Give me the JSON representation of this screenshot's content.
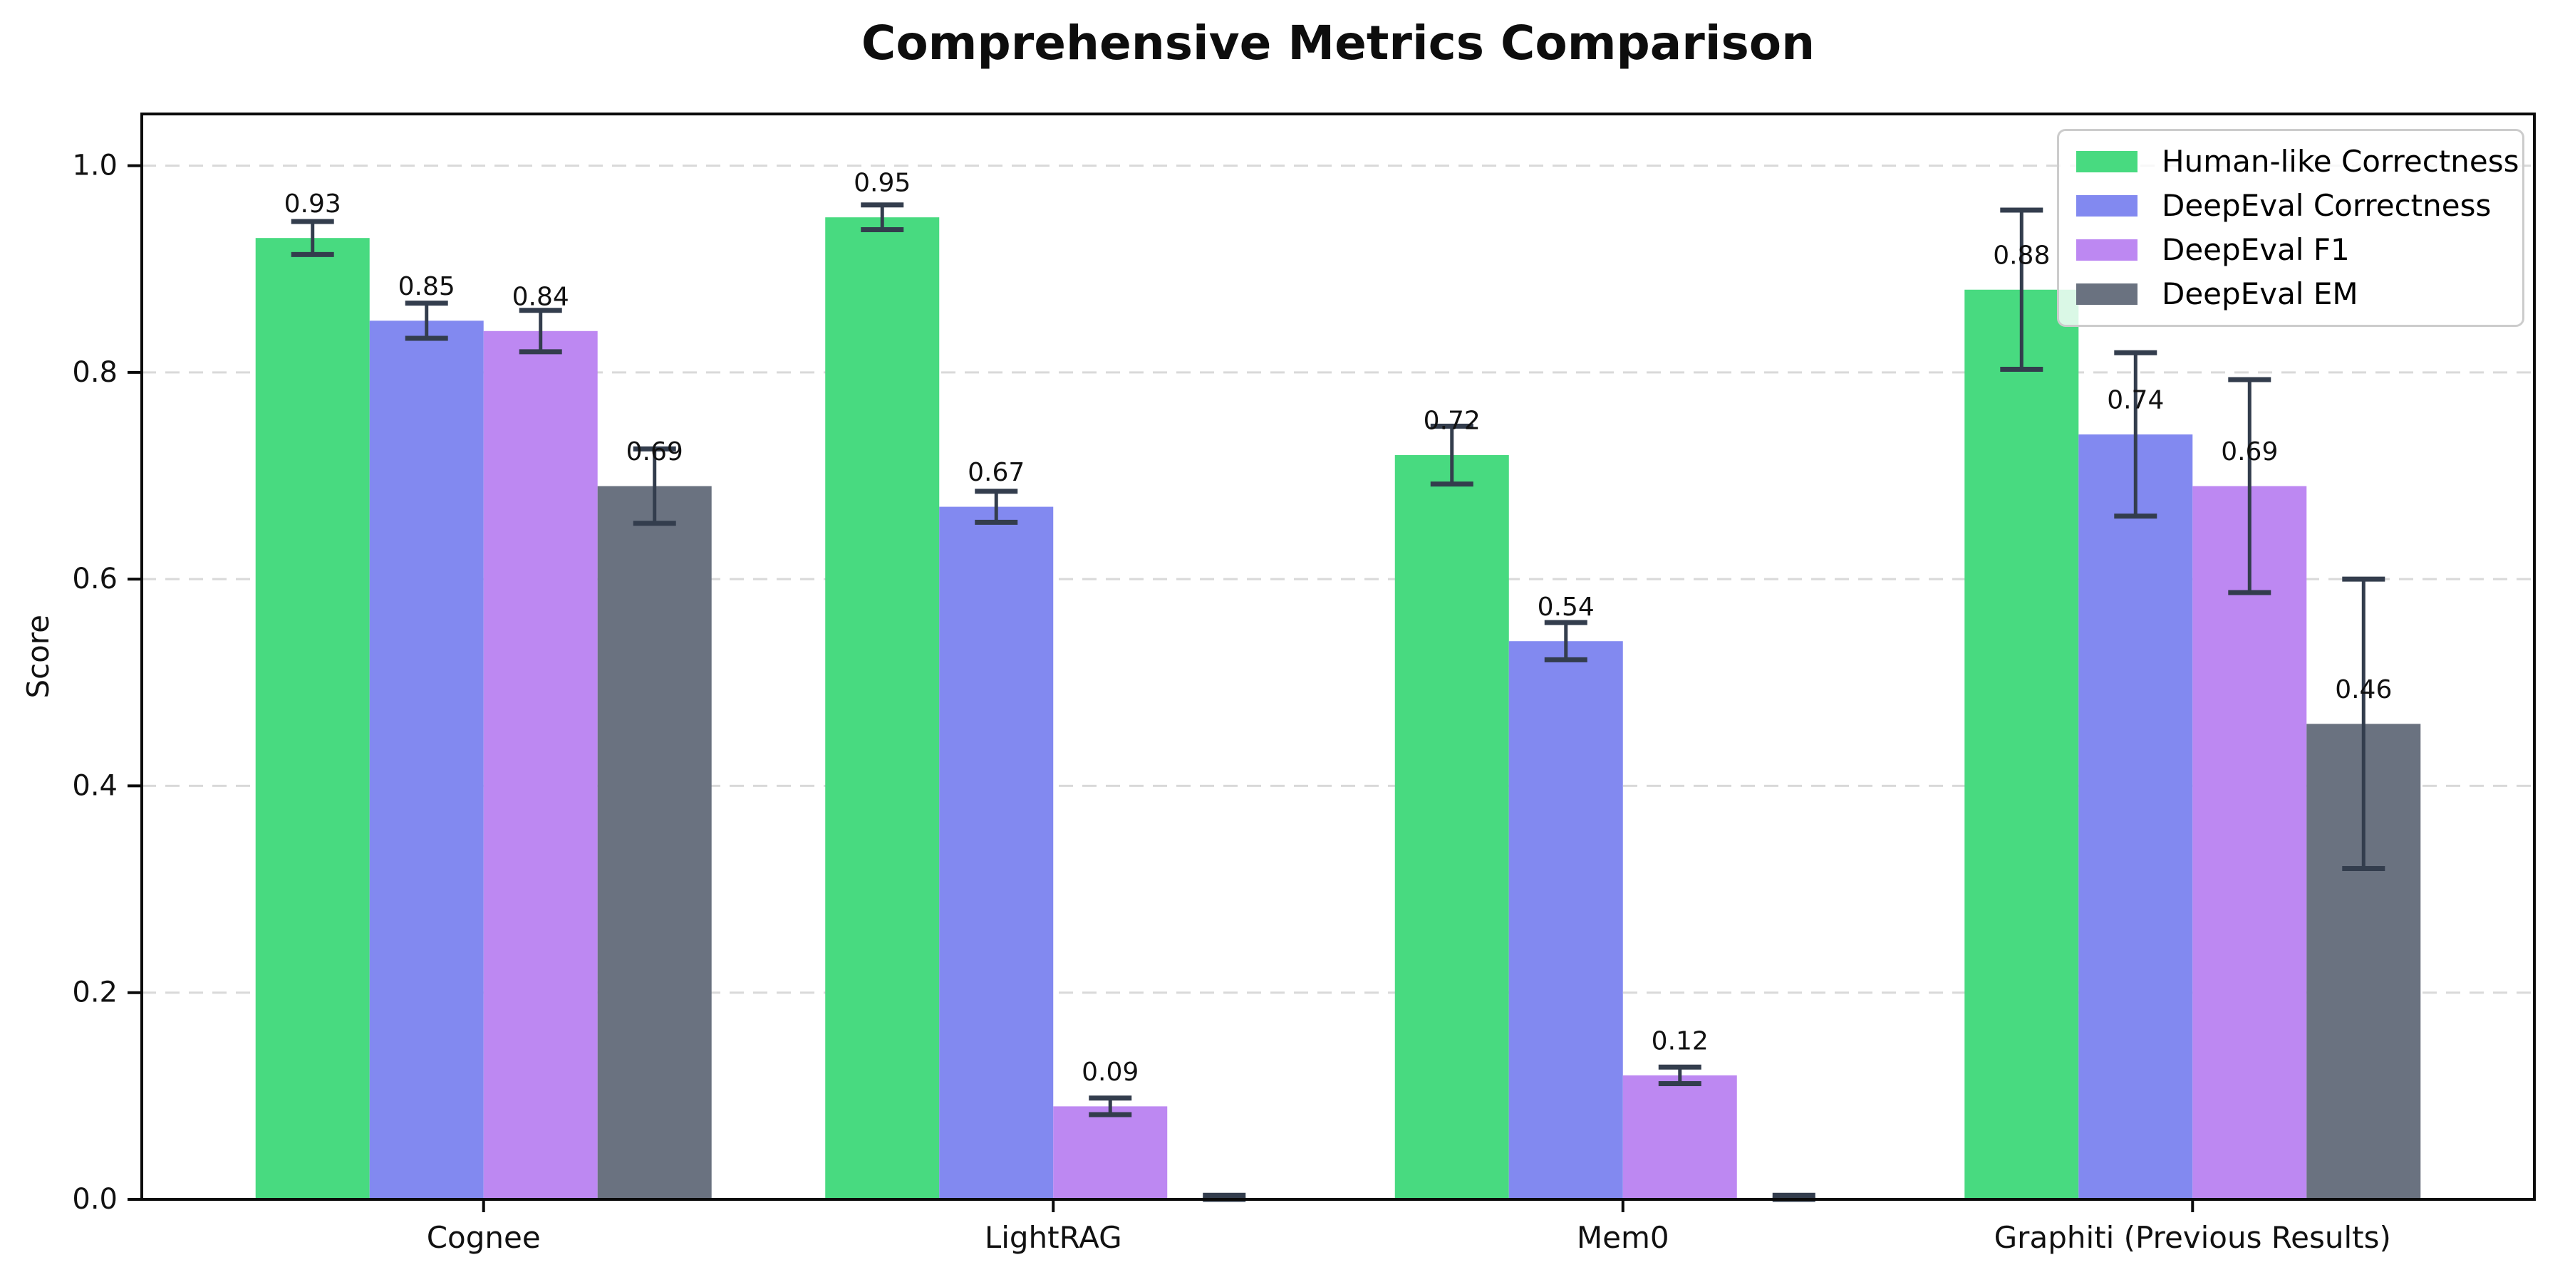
{
  "title": "Comprehensive Metrics Comparison",
  "chart_data": {
    "type": "bar",
    "title": "Comprehensive Metrics Comparison",
    "xlabel": "",
    "ylabel": "Score",
    "categories": [
      "Cognee",
      "LightRAG",
      "Mem0",
      "Graphiti (Previous Results)"
    ],
    "series": [
      {
        "name": "Human-like Correctness",
        "color": "#48da80",
        "values": [
          0.93,
          0.95,
          0.72,
          0.88
        ],
        "errors": [
          0.016,
          0.012,
          0.028,
          0.077
        ],
        "labels": [
          "0.93",
          "0.95",
          "0.72",
          "0.88"
        ]
      },
      {
        "name": "DeepEval Correctness",
        "color": "#8289f0",
        "values": [
          0.85,
          0.67,
          0.54,
          0.74
        ],
        "errors": [
          0.017,
          0.015,
          0.018,
          0.079
        ],
        "labels": [
          "0.85",
          "0.67",
          "0.54",
          "0.74"
        ]
      },
      {
        "name": "DeepEval F1",
        "color": "#bd88f2",
        "values": [
          0.84,
          0.09,
          0.12,
          0.69
        ],
        "errors": [
          0.02,
          0.008,
          0.008,
          0.103
        ],
        "labels": [
          "0.84",
          "0.09",
          "0.12",
          "0.69"
        ]
      },
      {
        "name": "DeepEval EM",
        "color": "#6a7280",
        "values": [
          0.69,
          0.0,
          0.0,
          0.46
        ],
        "errors": [
          0.036,
          0.004,
          0.004,
          0.14
        ],
        "labels": [
          "0.69",
          "",
          "",
          "0.46"
        ]
      }
    ],
    "ylim": [
      0,
      1.05
    ],
    "yticks": [
      "0.0",
      "0.2",
      "0.4",
      "0.6",
      "0.8",
      "1.0"
    ],
    "grid": "horizontal-dashed",
    "legend_position": "upper-right",
    "colors": {
      "error_bar": "#333d4d",
      "gridline": "#d9d9d9",
      "spine": "#0a0a0a",
      "text": "#111111"
    }
  }
}
